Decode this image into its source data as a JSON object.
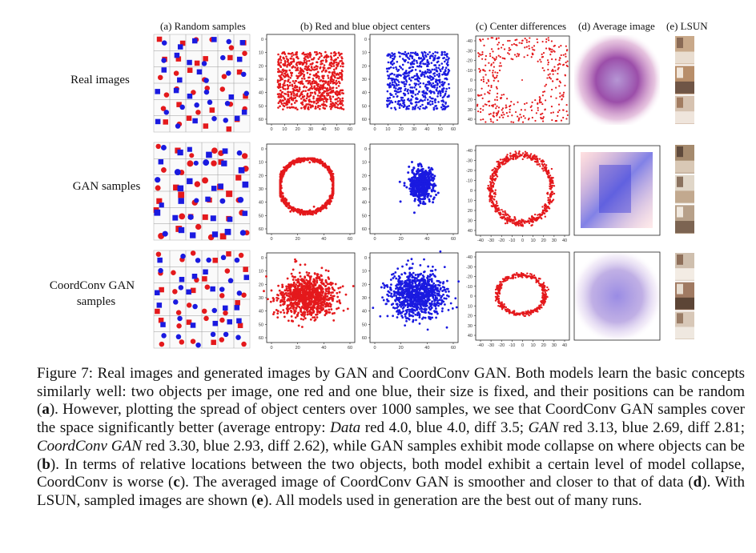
{
  "column_headers": {
    "random_samples": "(a) Random samples",
    "object_centers": "(b) Red and blue object centers",
    "center_differences": "(c) Center differences",
    "average_image": "(d) Average image",
    "lsun": "(e) LSUN"
  },
  "row_labels": {
    "real": "Real images",
    "gan": "GAN samples",
    "coordconv_line1": "CoordConv GAN",
    "coordconv_line2": "samples"
  },
  "colors": {
    "red": "#e4191c",
    "blue": "#1a1ae0"
  },
  "tick_labels": {
    "real_y": [
      "0",
      "10",
      "20",
      "30",
      "40",
      "50",
      "60"
    ],
    "real_x": [
      "0",
      "10",
      "20",
      "30",
      "40",
      "50",
      "60"
    ],
    "gan_y": [
      "0",
      "10",
      "20",
      "30",
      "40",
      "50",
      "60"
    ],
    "gan_x": [
      "0",
      "20",
      "40",
      "60"
    ],
    "diff_y": [
      "-40",
      "-30",
      "-20",
      "-10",
      "0",
      "10",
      "20",
      "30",
      "40"
    ],
    "diff_x": [
      "-40",
      "-30",
      "-20",
      "-10",
      "0",
      "10",
      "20",
      "30",
      "40"
    ]
  },
  "caption": {
    "p1": "Figure 7: Real images and generated images by GAN and CoordConv GAN. Both models learn the basic concepts similarly well: two objects per image, one red and one blue, their size is fixed, and their positions can be random (",
    "b_a": "a",
    "p2": "). However, plotting the spread of object centers over 1000 samples, we see that CoordConv GAN samples cover the space significantly better (average entropy: ",
    "i_data": "Data",
    "p3": " red 4.0, blue 4.0, diff 3.5; ",
    "i_gan": "GAN",
    "p4": " red 3.13, blue 2.69, diff 2.81; ",
    "i_coordconv": "CoordConv GAN",
    "p5": " red 3.30, blue 2.93, diff 2.62), while GAN samples exhibit mode collapse on where objects can be (",
    "b_b": "b",
    "p6": "). In terms of relative locations between the two objects, both model exhibit a certain level of model collapse, CoordConv is worse (",
    "b_c": "c",
    "p7": "). The averaged image of CoordConv GAN is smoother and closer to that of data (",
    "b_d": "d",
    "p8": "). With LSUN, sampled images are shown (",
    "b_e": "e",
    "p9": "). All models used in generation are the best out of many runs."
  }
}
